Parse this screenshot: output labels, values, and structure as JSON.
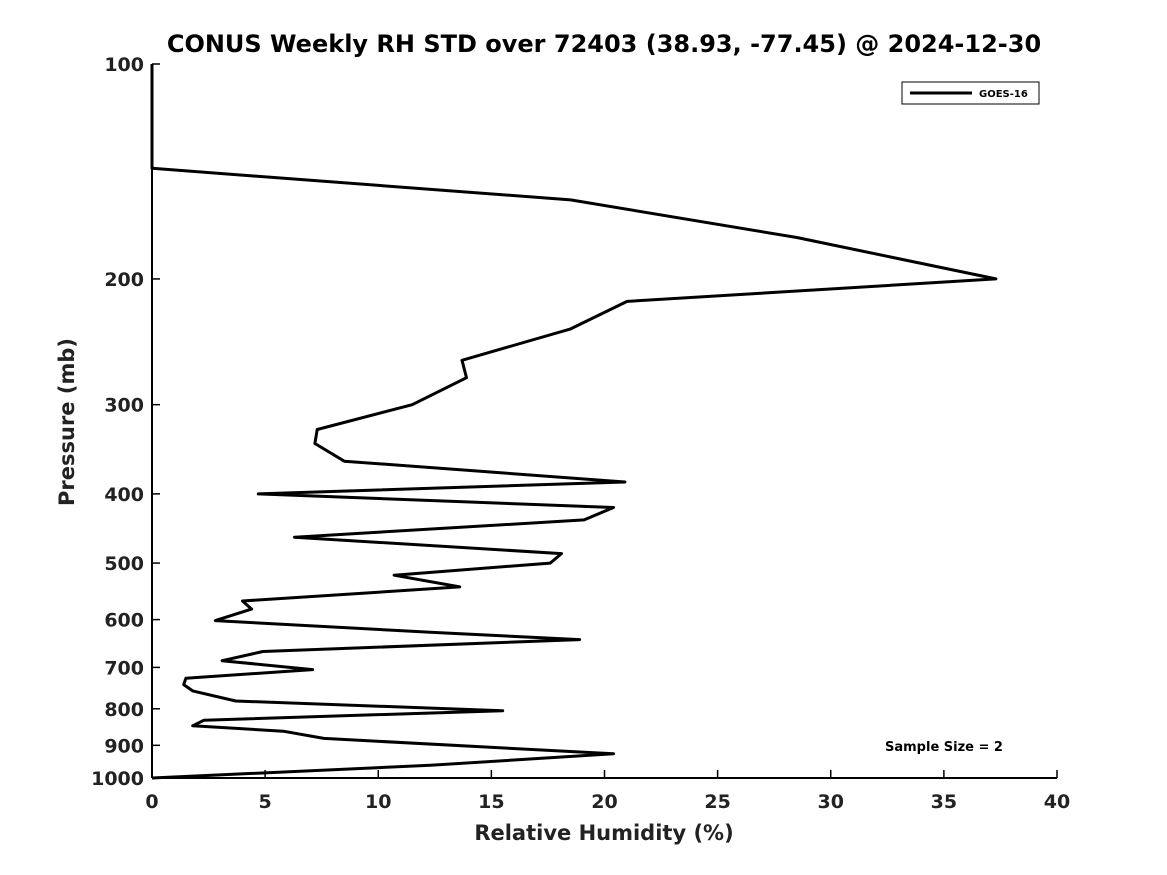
{
  "chart_data": {
    "type": "line",
    "title": "CONUS Weekly RH STD over 72403 (38.93, -77.45) @ 2024-12-30",
    "xlabel": "Relative Humidity (%)",
    "ylabel": "Pressure (mb)",
    "xlim": [
      0,
      40
    ],
    "ylim": [
      1000,
      100
    ],
    "yscale": "log",
    "grid": false,
    "legend_position": "top-right",
    "x_ticks": [
      "0",
      "5",
      "10",
      "15",
      "20",
      "25",
      "30",
      "35",
      "40"
    ],
    "y_ticks": [
      "100",
      "200",
      "300",
      "400",
      "500",
      "600",
      "700",
      "800",
      "900",
      "1000"
    ],
    "annotation": "Sample Size = 2",
    "series": [
      {
        "name": "GOES-16",
        "color": "#000000",
        "points": [
          [
            0,
            100
          ],
          [
            0,
            140
          ],
          [
            18.5,
            155
          ],
          [
            28.5,
            175
          ],
          [
            37.3,
            200
          ],
          [
            21,
            215
          ],
          [
            18.5,
            235
          ],
          [
            13.7,
            260
          ],
          [
            13.9,
            275
          ],
          [
            11.5,
            300
          ],
          [
            7.3,
            325
          ],
          [
            7.2,
            340
          ],
          [
            8.5,
            360
          ],
          [
            20.9,
            385
          ],
          [
            4.7,
            400
          ],
          [
            20.4,
            418
          ],
          [
            19.1,
            435
          ],
          [
            6.3,
            460
          ],
          [
            18.1,
            485
          ],
          [
            17.6,
            500
          ],
          [
            10.7,
            520
          ],
          [
            13.6,
            540
          ],
          [
            4,
            565
          ],
          [
            4.4,
            580
          ],
          [
            2.8,
            602
          ],
          [
            12.3,
            625
          ],
          [
            18.9,
            640
          ],
          [
            4.9,
            665
          ],
          [
            3.1,
            685
          ],
          [
            7.1,
            705
          ],
          [
            1.5,
            725
          ],
          [
            1.4,
            740
          ],
          [
            1.8,
            755
          ],
          [
            3.7,
            780
          ],
          [
            15.5,
            805
          ],
          [
            2.3,
            830
          ],
          [
            1.8,
            845
          ],
          [
            5.8,
            860
          ],
          [
            7.6,
            880
          ],
          [
            20.4,
            925
          ],
          [
            12.3,
            960
          ],
          [
            0,
            1000
          ]
        ]
      }
    ]
  }
}
